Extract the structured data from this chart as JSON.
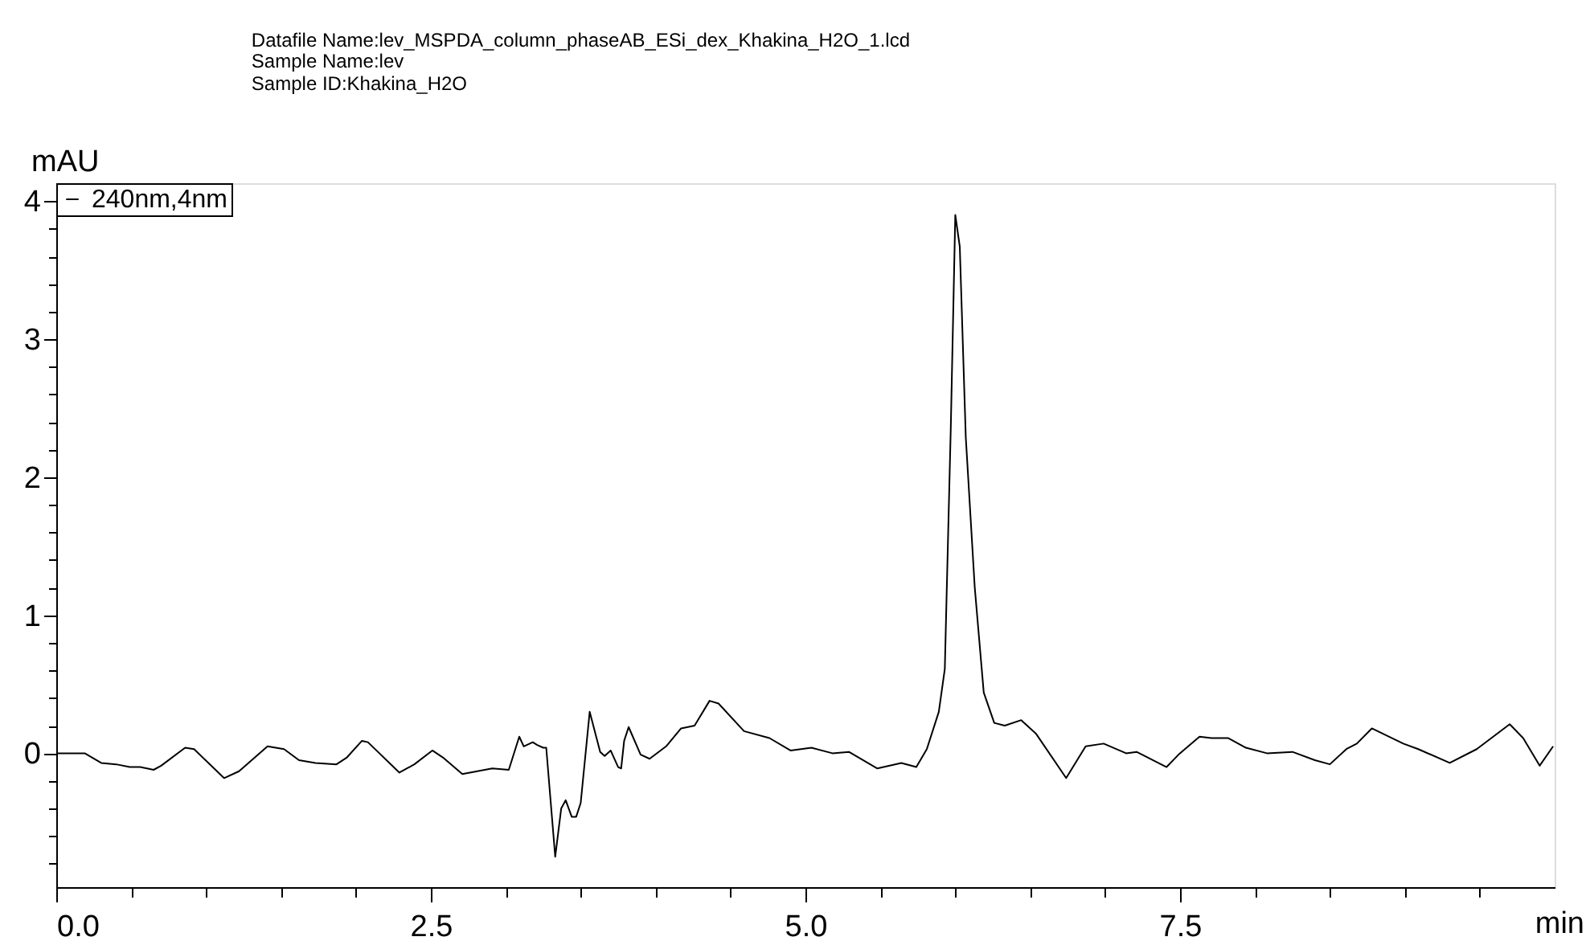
{
  "chart_data": {
    "type": "line",
    "title": "Datafile Name:lev_MSPDA_column_phaseAB_ESi_dex_Khakina_H2O_1.lcd",
    "subtitle": [
      "Sample Name:lev",
      "Sample ID:Khakina_H2O"
    ],
    "xlabel": "min",
    "ylabel": "mAU",
    "x": [
      0,
      0.19,
      0.3,
      0.4,
      0.49,
      0.56,
      0.65,
      0.7,
      0.86,
      0.92,
      1.12,
      1.22,
      1.41,
      1.52,
      1.62,
      1.73,
      1.87,
      1.94,
      2.04,
      2.08,
      2.29,
      2.39,
      2.51,
      2.58,
      2.71,
      2.91,
      3.02,
      3.09,
      3.12,
      3.18,
      3.21,
      3.25,
      3.27,
      3.33,
      3.37,
      3.4,
      3.44,
      3.47,
      3.5,
      3.56,
      3.63,
      3.66,
      3.7,
      3.75,
      3.77,
      3.79,
      3.82,
      3.9,
      3.96,
      4.07,
      4.17,
      4.26,
      4.36,
      4.42,
      4.59,
      4.76,
      4.9,
      5.04,
      5.18,
      5.29,
      5.48,
      5.64,
      5.74,
      5.81,
      5.89,
      5.93,
      5.97,
      6.0,
      6.03,
      6.07,
      6.13,
      6.19,
      6.26,
      6.33,
      6.44,
      6.54,
      6.74,
      6.87,
      6.99,
      7.14,
      7.21,
      7.41,
      7.49,
      7.63,
      7.71,
      7.82,
      7.94,
      8.08,
      8.25,
      8.4,
      8.5,
      8.61,
      8.68,
      8.78,
      8.99,
      9.09,
      9.3,
      9.48,
      9.7,
      9.79,
      9.9,
      9.99
    ],
    "series": [
      {
        "name": "240nm,4nm",
        "color": "#000000",
        "values": [
          0.0,
          0.0,
          -0.07,
          -0.08,
          -0.1,
          -0.1,
          -0.12,
          -0.09,
          0.04,
          0.03,
          -0.18,
          -0.13,
          0.05,
          0.03,
          -0.05,
          -0.07,
          -0.08,
          -0.03,
          0.09,
          0.08,
          -0.14,
          -0.08,
          0.02,
          -0.03,
          -0.15,
          -0.11,
          -0.12,
          0.12,
          0.05,
          0.08,
          0.06,
          0.04,
          0.04,
          -0.75,
          -0.4,
          -0.34,
          -0.46,
          -0.46,
          -0.36,
          0.3,
          0.01,
          -0.02,
          0.02,
          -0.1,
          -0.11,
          0.09,
          0.19,
          -0.01,
          -0.04,
          0.05,
          0.18,
          0.2,
          0.38,
          0.36,
          0.16,
          0.11,
          0.02,
          0.04,
          0.0,
          0.01,
          -0.11,
          -0.07,
          -0.1,
          0.03,
          0.3,
          0.61,
          2.36,
          3.9,
          3.67,
          2.29,
          1.2,
          0.44,
          0.22,
          0.2,
          0.24,
          0.14,
          -0.18,
          0.05,
          0.07,
          0.0,
          0.01,
          -0.1,
          -0.01,
          0.12,
          0.11,
          0.11,
          0.04,
          0.0,
          0.01,
          -0.05,
          -0.08,
          0.03,
          0.07,
          0.18,
          0.07,
          0.03,
          -0.07,
          0.03,
          0.21,
          0.11,
          -0.09,
          0.05
        ]
      }
    ],
    "xlim": [
      0,
      10
    ],
    "ylim": [
      -0.97,
      4.13
    ],
    "xticks": [
      {
        "value": 0,
        "label": "0.0"
      },
      {
        "value": 0.5,
        "label": null
      },
      {
        "value": 1,
        "label": null
      },
      {
        "value": 1.5,
        "label": null
      },
      {
        "value": 2,
        "label": null
      },
      {
        "value": 2.5,
        "label": "2.5"
      },
      {
        "value": 3,
        "label": null
      },
      {
        "value": 3.5,
        "label": null
      },
      {
        "value": 4,
        "label": null
      },
      {
        "value": 4.5,
        "label": null
      },
      {
        "value": 5,
        "label": "5.0"
      },
      {
        "value": 5.5,
        "label": null
      },
      {
        "value": 6,
        "label": null
      },
      {
        "value": 6.5,
        "label": null
      },
      {
        "value": 7,
        "label": null
      },
      {
        "value": 7.5,
        "label": "7.5"
      },
      {
        "value": 8,
        "label": null
      },
      {
        "value": 8.5,
        "label": null
      },
      {
        "value": 9,
        "label": null
      },
      {
        "value": 9.5,
        "label": null
      }
    ],
    "yticks": [
      {
        "value": -0.8,
        "label": null
      },
      {
        "value": -0.6,
        "label": null
      },
      {
        "value": -0.4,
        "label": null
      },
      {
        "value": -0.2,
        "label": null
      },
      0,
      {
        "value": 0.2,
        "label": null
      },
      {
        "value": 0.4,
        "label": null
      },
      {
        "value": 0.6,
        "label": null
      },
      {
        "value": 0.8,
        "label": null
      },
      1,
      {
        "value": 1.2,
        "label": null
      },
      {
        "value": 1.4,
        "label": null
      },
      {
        "value": 1.6,
        "label": null
      },
      {
        "value": 1.8,
        "label": null
      },
      2,
      {
        "value": 2.2,
        "label": null
      },
      {
        "value": 2.4,
        "label": null
      },
      {
        "value": 2.6,
        "label": null
      },
      {
        "value": 2.8,
        "label": null
      },
      3,
      {
        "value": 3.2,
        "label": null
      },
      {
        "value": 3.4,
        "label": null
      },
      {
        "value": 3.6,
        "label": null
      },
      {
        "value": 3.8,
        "label": null
      },
      4
    ],
    "grid": false,
    "legend": "top left",
    "marker": "none",
    "line_style": "solid"
  }
}
